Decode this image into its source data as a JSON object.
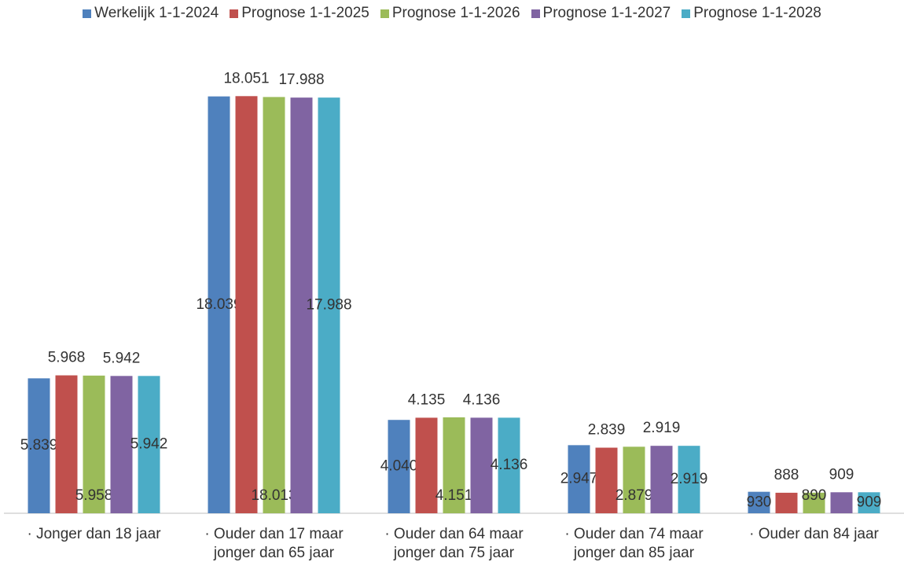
{
  "chart_data": {
    "type": "bar",
    "categories": [
      "· Jonger dan 18 jaar",
      "· Ouder dan 17 maar jonger dan 65 jaar",
      "· Ouder dan 64 maar jonger dan 75 jaar",
      "· Ouder dan 74 maar jonger dan 85 jaar",
      "· Ouder dan 84 jaar"
    ],
    "series": [
      {
        "name": "Werkelijk 1-1-2024",
        "color": "#4f81bd",
        "values": [
          5839,
          18039,
          4040,
          2947,
          930
        ],
        "value_labels": [
          "5.839",
          "18.039",
          "4.040",
          "2.947",
          "930"
        ]
      },
      {
        "name": "Prognose 1-1-2025",
        "color": "#c0504d",
        "values": [
          5968,
          18051,
          4135,
          2839,
          888
        ],
        "value_labels": [
          "5.968",
          "18.051",
          "4.135",
          "2.839",
          "888"
        ]
      },
      {
        "name": "Prognose 1-1-2026",
        "color": "#9bbb59",
        "values": [
          5958,
          18013,
          4151,
          2879,
          890
        ],
        "value_labels": [
          "5.958",
          "18.013",
          "4.151",
          "2.879",
          "890"
        ]
      },
      {
        "name": "Prognose 1-1-2027",
        "color": "#8064a2",
        "values": [
          5942,
          17988,
          4136,
          2919,
          909
        ],
        "value_labels": [
          "5.942",
          "17.988",
          "4.136",
          "2.919",
          "909"
        ]
      },
      {
        "name": "Prognose 1-1-2028",
        "color": "#4bacc6",
        "values": [
          5942,
          17988,
          4136,
          2919,
          909
        ],
        "value_labels": [
          "5.942",
          "17.988",
          "4.136",
          "2.919",
          "909"
        ]
      }
    ],
    "ylim": [
      0,
      20000
    ],
    "legend": "top"
  }
}
